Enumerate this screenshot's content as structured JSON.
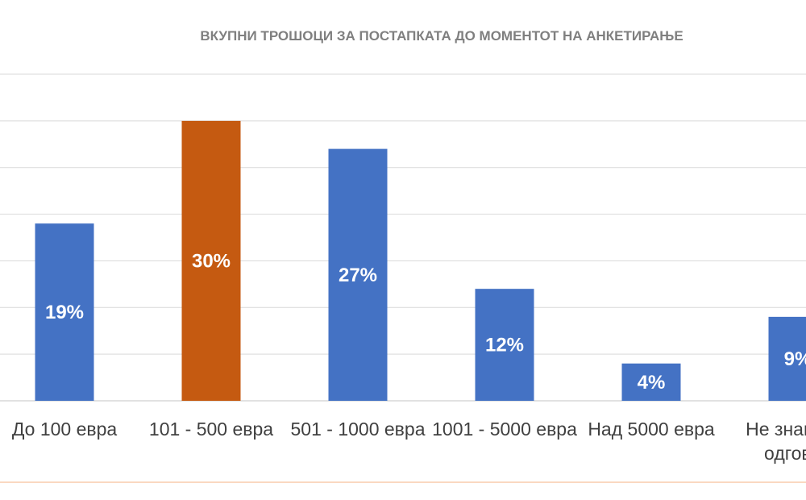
{
  "chart_data": {
    "type": "bar",
    "title": "ВКУПНИ ТРОШОЦИ ЗА ПОСТАПКАТА ДО МОМЕНТОТ НА АНКЕТИРАЊЕ",
    "categories": [
      [
        "До 100 евра"
      ],
      [
        "101 - 500 евра"
      ],
      [
        "501 - 1000 евра"
      ],
      [
        "1001 - 5000 евра"
      ],
      [
        "Над 5000 евра"
      ],
      [
        "Не знам/без",
        "одговор"
      ]
    ],
    "values": [
      19,
      30,
      27,
      12,
      4,
      9
    ],
    "data_labels": [
      "19%",
      "30%",
      "27%",
      "12%",
      "4%",
      "9%"
    ],
    "unit": "%",
    "ylim": [
      0,
      35
    ],
    "grid": true,
    "legend": "none",
    "colors": {
      "default_bar": "#4472c4",
      "highlight_bar": "#c55a11",
      "highlight_index": 1,
      "gridline": "#d9d9d9",
      "axis_line": "#d9d9d9",
      "title": "#7f7f7f",
      "category_text": "#404040",
      "value_text": "#ffffff",
      "footer_rule": "#f4b183"
    }
  }
}
